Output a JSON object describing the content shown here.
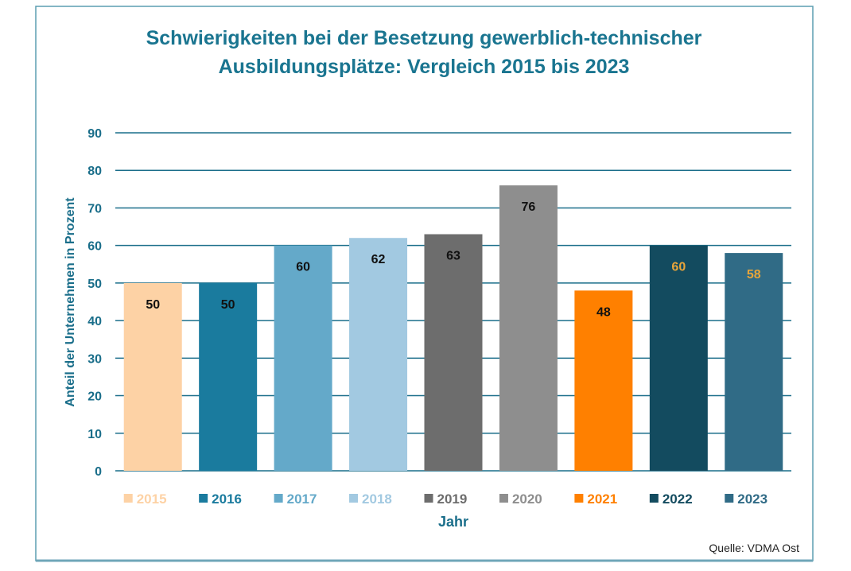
{
  "chart_data": {
    "type": "bar",
    "title_lines": [
      "Schwierigkeiten bei der Besetzung gewerblich-technischer",
      "Ausbildungsplätze: Vergleich 2015 bis 2023"
    ],
    "xlabel": "Jahr",
    "ylabel": "Anteil der Unternehmen in Prozent",
    "ylim": [
      0,
      90
    ],
    "yticks": [
      0,
      10,
      20,
      30,
      40,
      50,
      60,
      70,
      80,
      90
    ],
    "grid": true,
    "legend_position": "bottom",
    "categories": [
      "2015",
      "2016",
      "2017",
      "2018",
      "2019",
      "2020",
      "2021",
      "2022",
      "2023"
    ],
    "values": [
      50,
      50,
      60,
      62,
      63,
      76,
      48,
      60,
      58
    ],
    "colors": [
      "#FDD2A5",
      "#1A7B9E",
      "#64A9C9",
      "#A2C9E1",
      "#6D6D6D",
      "#8E8E8E",
      "#FF8000",
      "#134B5F",
      "#306B86"
    ],
    "label_colors": [
      "#111111",
      "#111111",
      "#111111",
      "#111111",
      "#111111",
      "#111111",
      "#111111",
      "#E8A53A",
      "#E8A53A"
    ],
    "source": "Quelle: VDMA Ost",
    "theme_color": "#1A6E8A"
  }
}
